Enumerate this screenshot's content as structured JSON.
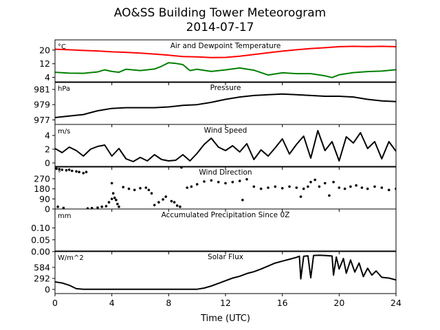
{
  "figure": {
    "title_line1": "AO&SS Building Tower Meteorogram",
    "title_line2": "2014-07-17",
    "xlabel": "Time (UTC)"
  },
  "chart_data": [
    {
      "type": "line",
      "title": "Air and Dewpoint Temperature",
      "unit": "°C",
      "xlim": [
        0,
        24
      ],
      "ylim": [
        1,
        26
      ],
      "yticks": [
        4,
        12,
        20
      ],
      "series": [
        {
          "color": "#ff0000",
          "points": [
            [
              0,
              20.5
            ],
            [
              1,
              20.2
            ],
            [
              2,
              19.8
            ],
            [
              3,
              19.5
            ],
            [
              4,
              19.0
            ],
            [
              5,
              18.7
            ],
            [
              6,
              18.2
            ],
            [
              7,
              17.7
            ],
            [
              8,
              17.0
            ],
            [
              9,
              16.2
            ],
            [
              10,
              16.0
            ],
            [
              11,
              15.6
            ],
            [
              12,
              15.7
            ],
            [
              12.5,
              16.1
            ],
            [
              13,
              16.4
            ],
            [
              14,
              17.4
            ],
            [
              15,
              18.4
            ],
            [
              16,
              19.4
            ],
            [
              17,
              20.2
            ],
            [
              18,
              20.9
            ],
            [
              19,
              21.4
            ],
            [
              20,
              22.0
            ],
            [
              21,
              22.2
            ],
            [
              22,
              22.1
            ],
            [
              23,
              22.2
            ],
            [
              24,
              22.0
            ]
          ]
        },
        {
          "color": "#008000",
          "points": [
            [
              0,
              7.0
            ],
            [
              1,
              6.5
            ],
            [
              2,
              6.4
            ],
            [
              3,
              7.2
            ],
            [
              3.5,
              8.4
            ],
            [
              4,
              7.5
            ],
            [
              4.5,
              7.0
            ],
            [
              5,
              8.8
            ],
            [
              6,
              8.0
            ],
            [
              7,
              8.9
            ],
            [
              7.5,
              10.5
            ],
            [
              8,
              12.6
            ],
            [
              8.5,
              12.2
            ],
            [
              9,
              11.5
            ],
            [
              9.5,
              8.0
            ],
            [
              10,
              8.8
            ],
            [
              11,
              7.5
            ],
            [
              12,
              8.4
            ],
            [
              13,
              9.5
            ],
            [
              14,
              8.2
            ],
            [
              15,
              5.4
            ],
            [
              16,
              6.7
            ],
            [
              17,
              6.2
            ],
            [
              18,
              6.2
            ],
            [
              19,
              4.9
            ],
            [
              19.5,
              3.9
            ],
            [
              20,
              5.5
            ],
            [
              21,
              6.8
            ],
            [
              22,
              7.4
            ],
            [
              23,
              7.7
            ],
            [
              24,
              8.5
            ]
          ]
        }
      ]
    },
    {
      "type": "line",
      "title": "Pressure",
      "unit": "hPa",
      "xlim": [
        0,
        24
      ],
      "ylim": [
        976.4,
        982.0
      ],
      "yticks": [
        977,
        979,
        981
      ],
      "series": [
        {
          "color": "#000000",
          "points": [
            [
              0,
              977.3
            ],
            [
              1,
              977.5
            ],
            [
              2,
              977.7
            ],
            [
              3,
              978.2
            ],
            [
              4,
              978.5
            ],
            [
              5,
              978.6
            ],
            [
              6,
              978.6
            ],
            [
              7,
              978.6
            ],
            [
              8,
              978.7
            ],
            [
              9,
              978.9
            ],
            [
              10,
              979.0
            ],
            [
              11,
              979.3
            ],
            [
              12,
              979.7
            ],
            [
              13,
              980.0
            ],
            [
              14,
              980.2
            ],
            [
              15,
              980.3
            ],
            [
              16,
              980.4
            ],
            [
              17,
              980.3
            ],
            [
              18,
              980.2
            ],
            [
              19,
              980.1
            ],
            [
              20,
              980.1
            ],
            [
              21,
              980.0
            ],
            [
              22,
              979.7
            ],
            [
              23,
              979.5
            ],
            [
              24,
              979.4
            ]
          ]
        }
      ]
    },
    {
      "type": "line",
      "title": "Wind Speed",
      "unit": "m/s",
      "xlim": [
        0,
        24
      ],
      "ylim": [
        -0.6,
        5.6
      ],
      "yticks": [
        0,
        2,
        4
      ],
      "series": [
        {
          "color": "#000000",
          "points": [
            [
              0,
              2.1
            ],
            [
              0.5,
              1.5
            ],
            [
              1,
              2.3
            ],
            [
              1.5,
              1.8
            ],
            [
              2,
              1.0
            ],
            [
              2.5,
              2.0
            ],
            [
              3,
              2.4
            ],
            [
              3.5,
              2.6
            ],
            [
              4,
              1.0
            ],
            [
              4.5,
              2.1
            ],
            [
              5,
              0.6
            ],
            [
              5.5,
              0.2
            ],
            [
              6,
              0.8
            ],
            [
              6.5,
              0.3
            ],
            [
              7,
              1.2
            ],
            [
              7.5,
              0.5
            ],
            [
              8,
              0.3
            ],
            [
              8.5,
              0.4
            ],
            [
              9,
              1.2
            ],
            [
              9.5,
              0.3
            ],
            [
              10,
              1.4
            ],
            [
              10.5,
              2.7
            ],
            [
              11,
              3.6
            ],
            [
              11.5,
              2.3
            ],
            [
              12,
              1.8
            ],
            [
              12.5,
              2.5
            ],
            [
              13,
              1.6
            ],
            [
              13.5,
              2.8
            ],
            [
              14,
              0.5
            ],
            [
              14.5,
              1.9
            ],
            [
              15,
              1.0
            ],
            [
              15.5,
              2.2
            ],
            [
              16,
              3.5
            ],
            [
              16.5,
              1.3
            ],
            [
              17,
              2.7
            ],
            [
              17.5,
              3.9
            ],
            [
              18,
              0.7
            ],
            [
              18.5,
              4.7
            ],
            [
              19,
              1.8
            ],
            [
              19.5,
              3.1
            ],
            [
              20,
              0.3
            ],
            [
              20.5,
              3.8
            ],
            [
              21,
              2.9
            ],
            [
              21.5,
              4.4
            ],
            [
              22,
              2.1
            ],
            [
              22.5,
              3.1
            ],
            [
              23,
              0.6
            ],
            [
              23.5,
              3.1
            ],
            [
              24,
              1.7
            ]
          ]
        }
      ]
    },
    {
      "type": "scatter",
      "title": "Wind Direction",
      "unit": "°",
      "xlim": [
        0,
        24
      ],
      "ylim": [
        0,
        380
      ],
      "yticks": [
        0,
        90,
        180,
        270
      ],
      "series": [
        {
          "color": "#000000",
          "points": [
            [
              0.1,
              360
            ],
            [
              0.3,
              355
            ],
            [
              0.5,
              350
            ],
            [
              0.8,
              345
            ],
            [
              1.0,
              350
            ],
            [
              1.2,
              340
            ],
            [
              1.5,
              335
            ],
            [
              1.7,
              330
            ],
            [
              2.0,
              320
            ],
            [
              2.2,
              330
            ],
            [
              0.2,
              20
            ],
            [
              0.6,
              10
            ],
            [
              2.3,
              5
            ],
            [
              2.6,
              8
            ],
            [
              3.0,
              12
            ],
            [
              3.3,
              20
            ],
            [
              3.6,
              25
            ],
            [
              3.8,
              60
            ],
            [
              4.0,
              90
            ],
            [
              4.1,
              140
            ],
            [
              4.2,
              100
            ],
            [
              4.4,
              45
            ],
            [
              4.5,
              20
            ],
            [
              4.0,
              230
            ],
            [
              4.3,
              80
            ],
            [
              4.8,
              195
            ],
            [
              5.2,
              180
            ],
            [
              5.6,
              170
            ],
            [
              6.0,
              185
            ],
            [
              6.4,
              190
            ],
            [
              6.6,
              170
            ],
            [
              6.8,
              140
            ],
            [
              7.0,
              35
            ],
            [
              7.3,
              60
            ],
            [
              7.6,
              85
            ],
            [
              7.8,
              110
            ],
            [
              8.2,
              70
            ],
            [
              8.4,
              60
            ],
            [
              8.6,
              30
            ],
            [
              8.8,
              20
            ],
            [
              8.9,
              370
            ],
            [
              9.3,
              190
            ],
            [
              9.6,
              200
            ],
            [
              10.0,
              220
            ],
            [
              10.5,
              245
            ],
            [
              11.0,
              255
            ],
            [
              11.5,
              240
            ],
            [
              12.0,
              230
            ],
            [
              12.5,
              240
            ],
            [
              13.0,
              250
            ],
            [
              13.5,
              265
            ],
            [
              13.2,
              80
            ],
            [
              14.0,
              200
            ],
            [
              14.5,
              180
            ],
            [
              15.0,
              190
            ],
            [
              15.5,
              200
            ],
            [
              16.0,
              185
            ],
            [
              16.5,
              200
            ],
            [
              17.0,
              190
            ],
            [
              17.3,
              110
            ],
            [
              17.5,
              180
            ],
            [
              17.8,
              200
            ],
            [
              18.0,
              240
            ],
            [
              18.3,
              260
            ],
            [
              18.6,
              200
            ],
            [
              19.0,
              230
            ],
            [
              19.3,
              120
            ],
            [
              19.6,
              240
            ],
            [
              20.0,
              190
            ],
            [
              20.4,
              180
            ],
            [
              20.8,
              200
            ],
            [
              21.2,
              210
            ],
            [
              21.6,
              190
            ],
            [
              22.0,
              180
            ],
            [
              22.5,
              200
            ],
            [
              23.0,
              190
            ],
            [
              23.5,
              170
            ],
            [
              24.0,
              180
            ]
          ]
        }
      ]
    },
    {
      "type": "line",
      "title": "Accumulated Precipitation Since 0Z",
      "unit": "mm",
      "xlim": [
        0,
        24
      ],
      "ylim": [
        0,
        0.18
      ],
      "yticks": [
        0.0,
        0.05,
        0.1
      ],
      "ytick_labels": [
        "0.00",
        "0.05",
        "0.10"
      ],
      "series": [
        {
          "color": "#000000",
          "points": [
            [
              0,
              0
            ],
            [
              24,
              0
            ]
          ]
        }
      ]
    },
    {
      "type": "line",
      "title": "Solar Flux",
      "unit": "W/m^2",
      "xlim": [
        0,
        24
      ],
      "xticks": [
        0,
        4,
        8,
        12,
        16,
        20,
        24
      ],
      "ylim": [
        -110,
        1020
      ],
      "yticks": [
        0,
        292,
        584
      ],
      "series": [
        {
          "color": "#000000",
          "points": [
            [
              0,
              200
            ],
            [
              0.5,
              170
            ],
            [
              1,
              110
            ],
            [
              1.5,
              20
            ],
            [
              2,
              5
            ],
            [
              3,
              3
            ],
            [
              5,
              3
            ],
            [
              7,
              3
            ],
            [
              9,
              3
            ],
            [
              10,
              5
            ],
            [
              10.5,
              35
            ],
            [
              11,
              90
            ],
            [
              11.5,
              160
            ],
            [
              12,
              230
            ],
            [
              12.5,
              300
            ],
            [
              13,
              350
            ],
            [
              13.5,
              420
            ],
            [
              14,
              470
            ],
            [
              14.5,
              540
            ],
            [
              15,
              620
            ],
            [
              15.5,
              700
            ],
            [
              16,
              750
            ],
            [
              16.5,
              800
            ],
            [
              17,
              850
            ],
            [
              17.2,
              880
            ],
            [
              17.3,
              280
            ],
            [
              17.5,
              880
            ],
            [
              17.8,
              890
            ],
            [
              18.0,
              310
            ],
            [
              18.2,
              900
            ],
            [
              18.6,
              905
            ],
            [
              19.0,
              900
            ],
            [
              19.5,
              885
            ],
            [
              19.6,
              380
            ],
            [
              19.8,
              860
            ],
            [
              20.0,
              540
            ],
            [
              20.3,
              820
            ],
            [
              20.5,
              430
            ],
            [
              20.8,
              780
            ],
            [
              21.1,
              460
            ],
            [
              21.4,
              700
            ],
            [
              21.7,
              340
            ],
            [
              22.0,
              560
            ],
            [
              22.3,
              380
            ],
            [
              22.6,
              490
            ],
            [
              23,
              320
            ],
            [
              23.5,
              300
            ],
            [
              24,
              250
            ]
          ]
        }
      ]
    }
  ]
}
